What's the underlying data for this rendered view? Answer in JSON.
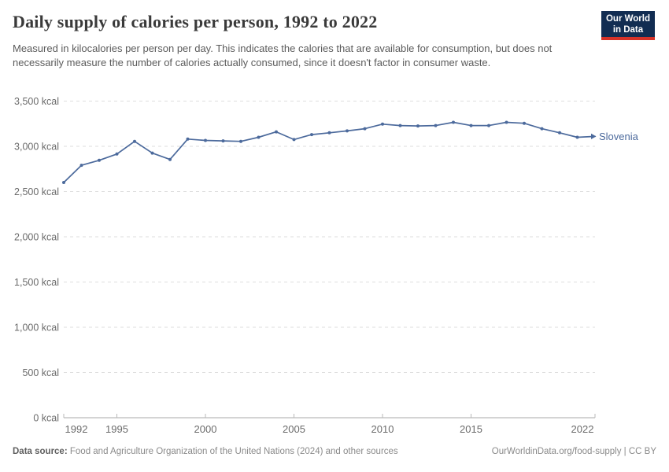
{
  "header": {
    "title": "Daily supply of calories per person, 1992 to 2022",
    "subtitle": "Measured in kilocalories per person per day. This indicates the calories that are available for consumption, but does not necessarily measure the number of calories actually consumed, since it doesn't factor in consumer waste.",
    "logo": {
      "line1": "Our World",
      "line2": "in Data"
    }
  },
  "footer": {
    "source_label": "Data source:",
    "source_text": "Food and Agriculture Organization of the United Nations (2024) and other sources",
    "link_text": "OurWorldinData.org/food-supply | CC BY"
  },
  "colors": {
    "series": "#4c6a9c",
    "series_label": "#4c6a9c",
    "logo_background": "#122d52",
    "logo_accent_bar": "#d73228",
    "grid": "#dedede",
    "axis": "#a8a8a8",
    "tick_label": "#6b6b6b"
  },
  "chart_data": {
    "type": "line",
    "title": "Daily supply of calories per person, 1992 to 2022",
    "xlabel": "",
    "ylabel": "",
    "xlim": [
      1992,
      2022
    ],
    "ylim": [
      0,
      3500
    ],
    "x_ticks": [
      1992,
      1995,
      2000,
      2005,
      2010,
      2015,
      2022
    ],
    "y_ticks": [
      0,
      500,
      1000,
      1500,
      2000,
      2500,
      3000,
      3500
    ],
    "y_tick_suffix": " kcal",
    "grid": "horizontal-dashed",
    "legend": "end-of-line-label",
    "series": [
      {
        "name": "Slovenia",
        "color": "#4c6a9c",
        "x": [
          1992,
          1993,
          1994,
          1995,
          1996,
          1997,
          1998,
          1999,
          2000,
          2001,
          2002,
          2003,
          2004,
          2005,
          2006,
          2007,
          2008,
          2009,
          2010,
          2011,
          2012,
          2013,
          2014,
          2015,
          2016,
          2017,
          2018,
          2019,
          2020,
          2021,
          2022
        ],
        "values": [
          2600,
          2790,
          2845,
          2915,
          3055,
          2925,
          2855,
          3080,
          3065,
          3060,
          3055,
          3100,
          3160,
          3075,
          3130,
          3150,
          3170,
          3195,
          3245,
          3230,
          3225,
          3230,
          3265,
          3230,
          3230,
          3265,
          3255,
          3195,
          3150,
          3100,
          3110
        ]
      }
    ]
  }
}
